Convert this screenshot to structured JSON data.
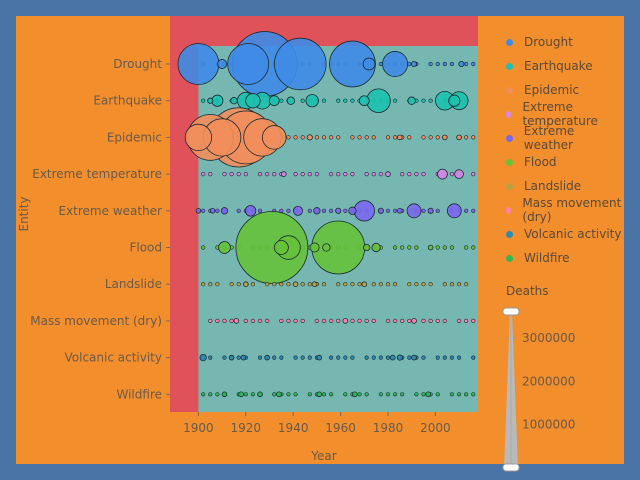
{
  "chart_data": {
    "type": "scatter",
    "xlabel": "Year",
    "ylabel": "Entity",
    "xlim": [
      1888,
      2018
    ],
    "x_ticks": [
      1900,
      1920,
      1940,
      1960,
      1980,
      2000
    ],
    "categories": [
      "Drought",
      "Earthquake",
      "Epidemic",
      "Extreme temperature",
      "Extreme weather",
      "Flood",
      "Landslide",
      "Mass movement (dry)",
      "Volcanic activity",
      "Wildfire"
    ],
    "colors": {
      "Drought": "#3f8be6",
      "Earthquake": "#1cc2b0",
      "Epidemic": "#f28e5c",
      "Extreme temperature": "#d687e8",
      "Extreme weather": "#7b68ee",
      "Flood": "#66c23a",
      "Landslide": "#b8a245",
      "Mass movement (dry)": "#ff7fb0",
      "Volcanic activity": "#2a8bb5",
      "Wildfire": "#2db85a"
    },
    "legend_position": "right",
    "size_legend": {
      "title": "Deaths",
      "ticks": [
        1000000,
        2000000,
        3000000
      ],
      "tick_labels": [
        "1000000",
        "2000000",
        "3000000"
      ]
    },
    "highlight_region_color": "#e0525a",
    "plot_area_color": "#76b7b2",
    "series": [
      {
        "name": "Drought",
        "points": [
          [
            1900,
            1200000
          ],
          [
            1910,
            60000
          ],
          [
            1921,
            1200000
          ],
          [
            1928,
            3000000
          ],
          [
            1943,
            1900000
          ],
          [
            1965,
            1500000
          ],
          [
            1972,
            100000
          ],
          [
            1983,
            450000
          ],
          [
            1991,
            20000
          ],
          [
            2011,
            20000
          ]
        ]
      },
      {
        "name": "Earthquake",
        "points": [
          [
            1905,
            20000
          ],
          [
            1908,
            90000
          ],
          [
            1915,
            30000
          ],
          [
            1920,
            200000
          ],
          [
            1923,
            150000
          ],
          [
            1927,
            200000
          ],
          [
            1932,
            70000
          ],
          [
            1939,
            40000
          ],
          [
            1948,
            110000
          ],
          [
            1970,
            70000
          ],
          [
            1976,
            400000
          ],
          [
            1990,
            40000
          ],
          [
            2004,
            250000
          ],
          [
            2008,
            90000
          ],
          [
            2010,
            230000
          ]
        ]
      },
      {
        "name": "Epidemic",
        "points": [
          [
            1900,
            500000
          ],
          [
            1905,
            1500000
          ],
          [
            1910,
            1000000
          ],
          [
            1917,
            2500000
          ],
          [
            1920,
            2000000
          ],
          [
            1927,
            1000000
          ],
          [
            1932,
            400000
          ],
          [
            1947,
            20000
          ],
          [
            1985,
            10000
          ],
          [
            2004,
            10000
          ],
          [
            2010,
            8000
          ]
        ]
      },
      {
        "name": "Extreme temperature",
        "points": [
          [
            1936,
            5000
          ],
          [
            1980,
            5000
          ],
          [
            2003,
            70000
          ],
          [
            2010,
            55000
          ]
        ]
      },
      {
        "name": "Extreme weather",
        "points": [
          [
            1900,
            8000
          ],
          [
            1906,
            10000
          ],
          [
            1911,
            30000
          ],
          [
            1922,
            80000
          ],
          [
            1942,
            60000
          ],
          [
            1950,
            30000
          ],
          [
            1959,
            20000
          ],
          [
            1965,
            40000
          ],
          [
            1970,
            300000
          ],
          [
            1977,
            20000
          ],
          [
            1985,
            15000
          ],
          [
            1991,
            140000
          ],
          [
            1998,
            20000
          ],
          [
            2008,
            140000
          ]
        ]
      },
      {
        "name": "Flood",
        "points": [
          [
            1911,
            100000
          ],
          [
            1931,
            3700000
          ],
          [
            1935,
            140000
          ],
          [
            1938,
            400000
          ],
          [
            1949,
            60000
          ],
          [
            1954,
            40000
          ],
          [
            1959,
            2000000
          ],
          [
            1971,
            30000
          ],
          [
            1975,
            50000
          ],
          [
            1998,
            5000
          ]
        ]
      },
      {
        "name": "Landslide",
        "points": [
          [
            1920,
            5000
          ],
          [
            1941,
            5000
          ],
          [
            1949,
            5000
          ],
          [
            1970,
            5000
          ]
        ]
      },
      {
        "name": "Mass movement (dry)",
        "points": [
          [
            1916,
            5000
          ],
          [
            1962,
            5000
          ],
          [
            1991,
            5000
          ]
        ]
      },
      {
        "name": "Volcanic activity",
        "points": [
          [
            1902,
            30000
          ],
          [
            1914,
            5000
          ],
          [
            1919,
            5000
          ],
          [
            1929,
            5000
          ],
          [
            1951,
            5000
          ],
          [
            1982,
            5000
          ],
          [
            1985,
            20000
          ],
          [
            1991,
            5000
          ]
        ]
      },
      {
        "name": "Wildfire",
        "points": [
          [
            1911,
            3000
          ],
          [
            1918,
            3000
          ],
          [
            1926,
            3000
          ],
          [
            1934,
            3000
          ],
          [
            1951,
            3000
          ],
          [
            1966,
            3000
          ],
          [
            1997,
            3000
          ]
        ]
      }
    ]
  }
}
